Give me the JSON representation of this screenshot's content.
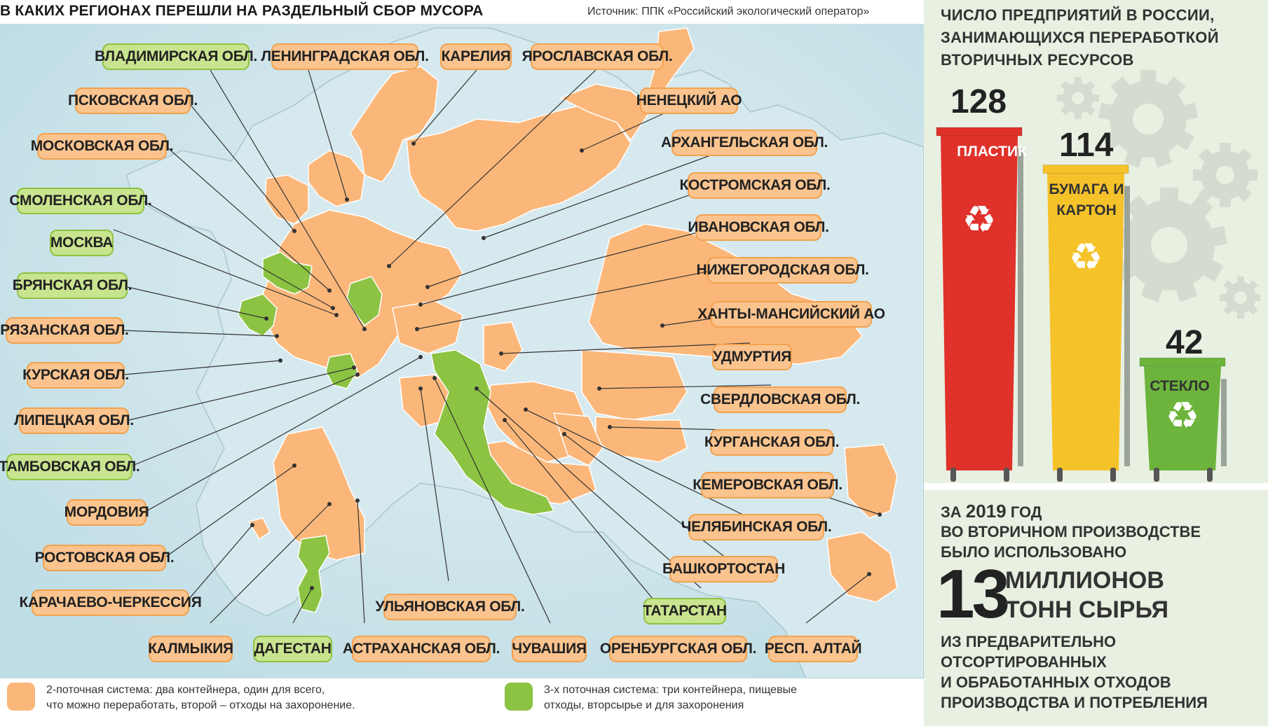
{
  "header": {
    "title": "В КАКИХ РЕГИОНАХ ПЕРЕШЛИ НА РАЗДЕЛЬНЫЙ СБОР МУСОРА",
    "source": "Источник: ППК «Российский экологический оператор»"
  },
  "regions": [
    {
      "name": "ВЛАДИМИРСКАЯ ОБЛ.",
      "system": "3"
    },
    {
      "name": "ЛЕНИНГРАДСКАЯ ОБЛ.",
      "system": "2"
    },
    {
      "name": "КАРЕЛИЯ",
      "system": "2"
    },
    {
      "name": "ЯРОСЛАВСКАЯ ОБЛ.",
      "system": "2"
    },
    {
      "name": "ПСКОВСКАЯ ОБЛ.",
      "system": "2"
    },
    {
      "name": "НЕНЕЦКИЙ АО",
      "system": "2"
    },
    {
      "name": "МОСКОВСКАЯ ОБЛ.",
      "system": "2"
    },
    {
      "name": "АРХАНГЕЛЬСКАЯ ОБЛ.",
      "system": "2"
    },
    {
      "name": "СМОЛЕНСКАЯ ОБЛ.",
      "system": "3"
    },
    {
      "name": "КОСТРОМСКАЯ ОБЛ.",
      "system": "2"
    },
    {
      "name": "МОСКВА",
      "system": "3"
    },
    {
      "name": "ИВАНОВСКАЯ ОБЛ.",
      "system": "2"
    },
    {
      "name": "БРЯНСКАЯ ОБЛ.",
      "system": "3"
    },
    {
      "name": "НИЖЕГОРОДСКАЯ ОБЛ.",
      "system": "2"
    },
    {
      "name": "РЯЗАНСКАЯ ОБЛ.",
      "system": "2"
    },
    {
      "name": "ХАНТЫ-МАНСИЙСКИЙ АО",
      "system": "2"
    },
    {
      "name": "КУРСКАЯ ОБЛ.",
      "system": "2"
    },
    {
      "name": "УДМУРТИЯ",
      "system": "2"
    },
    {
      "name": "ЛИПЕЦКАЯ ОБЛ.",
      "system": "2"
    },
    {
      "name": "СВЕРДЛОВСКАЯ ОБЛ.",
      "system": "2"
    },
    {
      "name": "ТАМБОВСКАЯ ОБЛ.",
      "system": "3"
    },
    {
      "name": "КУРГАНСКАЯ ОБЛ.",
      "system": "2"
    },
    {
      "name": "МОРДОВИЯ",
      "system": "2"
    },
    {
      "name": "КЕМЕРОВСКАЯ ОБЛ.",
      "system": "2"
    },
    {
      "name": "РОСТОВСКАЯ ОБЛ.",
      "system": "2"
    },
    {
      "name": "ЧЕЛЯБИНСКАЯ ОБЛ.",
      "system": "2"
    },
    {
      "name": "КАРАЧАЕВО-ЧЕРКЕССИЯ",
      "system": "2"
    },
    {
      "name": "БАШКОРТОСТАН",
      "system": "2"
    },
    {
      "name": "ТАТАРСТАН",
      "system": "3"
    },
    {
      "name": "УЛЬЯНОВСКАЯ ОБЛ.",
      "system": "2"
    },
    {
      "name": "КАЛМЫКИЯ",
      "system": "2"
    },
    {
      "name": "ДАГЕСТАН",
      "system": "3"
    },
    {
      "name": "АСТРАХАНСКАЯ ОБЛ.",
      "system": "2"
    },
    {
      "name": "ЧУВАШИЯ",
      "system": "2"
    },
    {
      "name": "ОРЕНБУРГСКАЯ ОБЛ.",
      "system": "2"
    },
    {
      "name": "РЕСП. АЛТАЙ",
      "system": "2"
    }
  ],
  "legend": {
    "two_stream": "2-поточная система: два контейнера, один для всего,\nчто можно переработать, второй – отходы на захоронение.",
    "three_stream": "3-х поточная система: три контейнера, пищевые\nотходы, вторсырье и для захоронения"
  },
  "colors": {
    "two_stream": "#fbb77a",
    "three_stream": "#8cc343",
    "sea": "#cfe6ec",
    "panel_bg": "#e8f0e1",
    "bin_plastic": "#e0312b",
    "bin_paper": "#f6c22a",
    "bin_glass": "#6cb43c"
  },
  "panel": {
    "title": "ЧИСЛО ПРЕДПРИЯТИЙ В РОССИИ, ЗАНИМАЮЩИХСЯ ПЕРЕРАБОТКОЙ ВТОРИЧНЫХ РЕСУРСОВ",
    "bins": [
      {
        "count": "128",
        "label": "ПЛАСТИК",
        "value": 128
      },
      {
        "count": "114",
        "label": "БУМАГА И КАРТОН",
        "value": 114
      },
      {
        "count": "42",
        "label": "СТЕКЛО",
        "value": 42
      }
    ],
    "icon": "recycle-icon"
  },
  "stats": {
    "line1_prefix": "ЗА",
    "line1_year": "2019",
    "line1_suffix": "ГОД",
    "line2": "ВО ВТОРИЧНОМ ПРОИЗВОДСТВЕ",
    "line3": "БЫЛО ИСПОЛЬЗОВАНО",
    "big_number": "13",
    "unit_line1": "МИЛЛИОНОВ",
    "unit_line2": "ТОНН СЫРЬЯ",
    "line4": "ИЗ ПРЕДВАРИТЕЛЬНО",
    "line5": "ОТСОРТИРОВАННЫХ",
    "line6": "И ОБРАБОТАННЫХ ОТХОДОВ",
    "line7": "ПРОИЗВОДСТВА И ПОТРЕБЛЕНИЯ"
  }
}
